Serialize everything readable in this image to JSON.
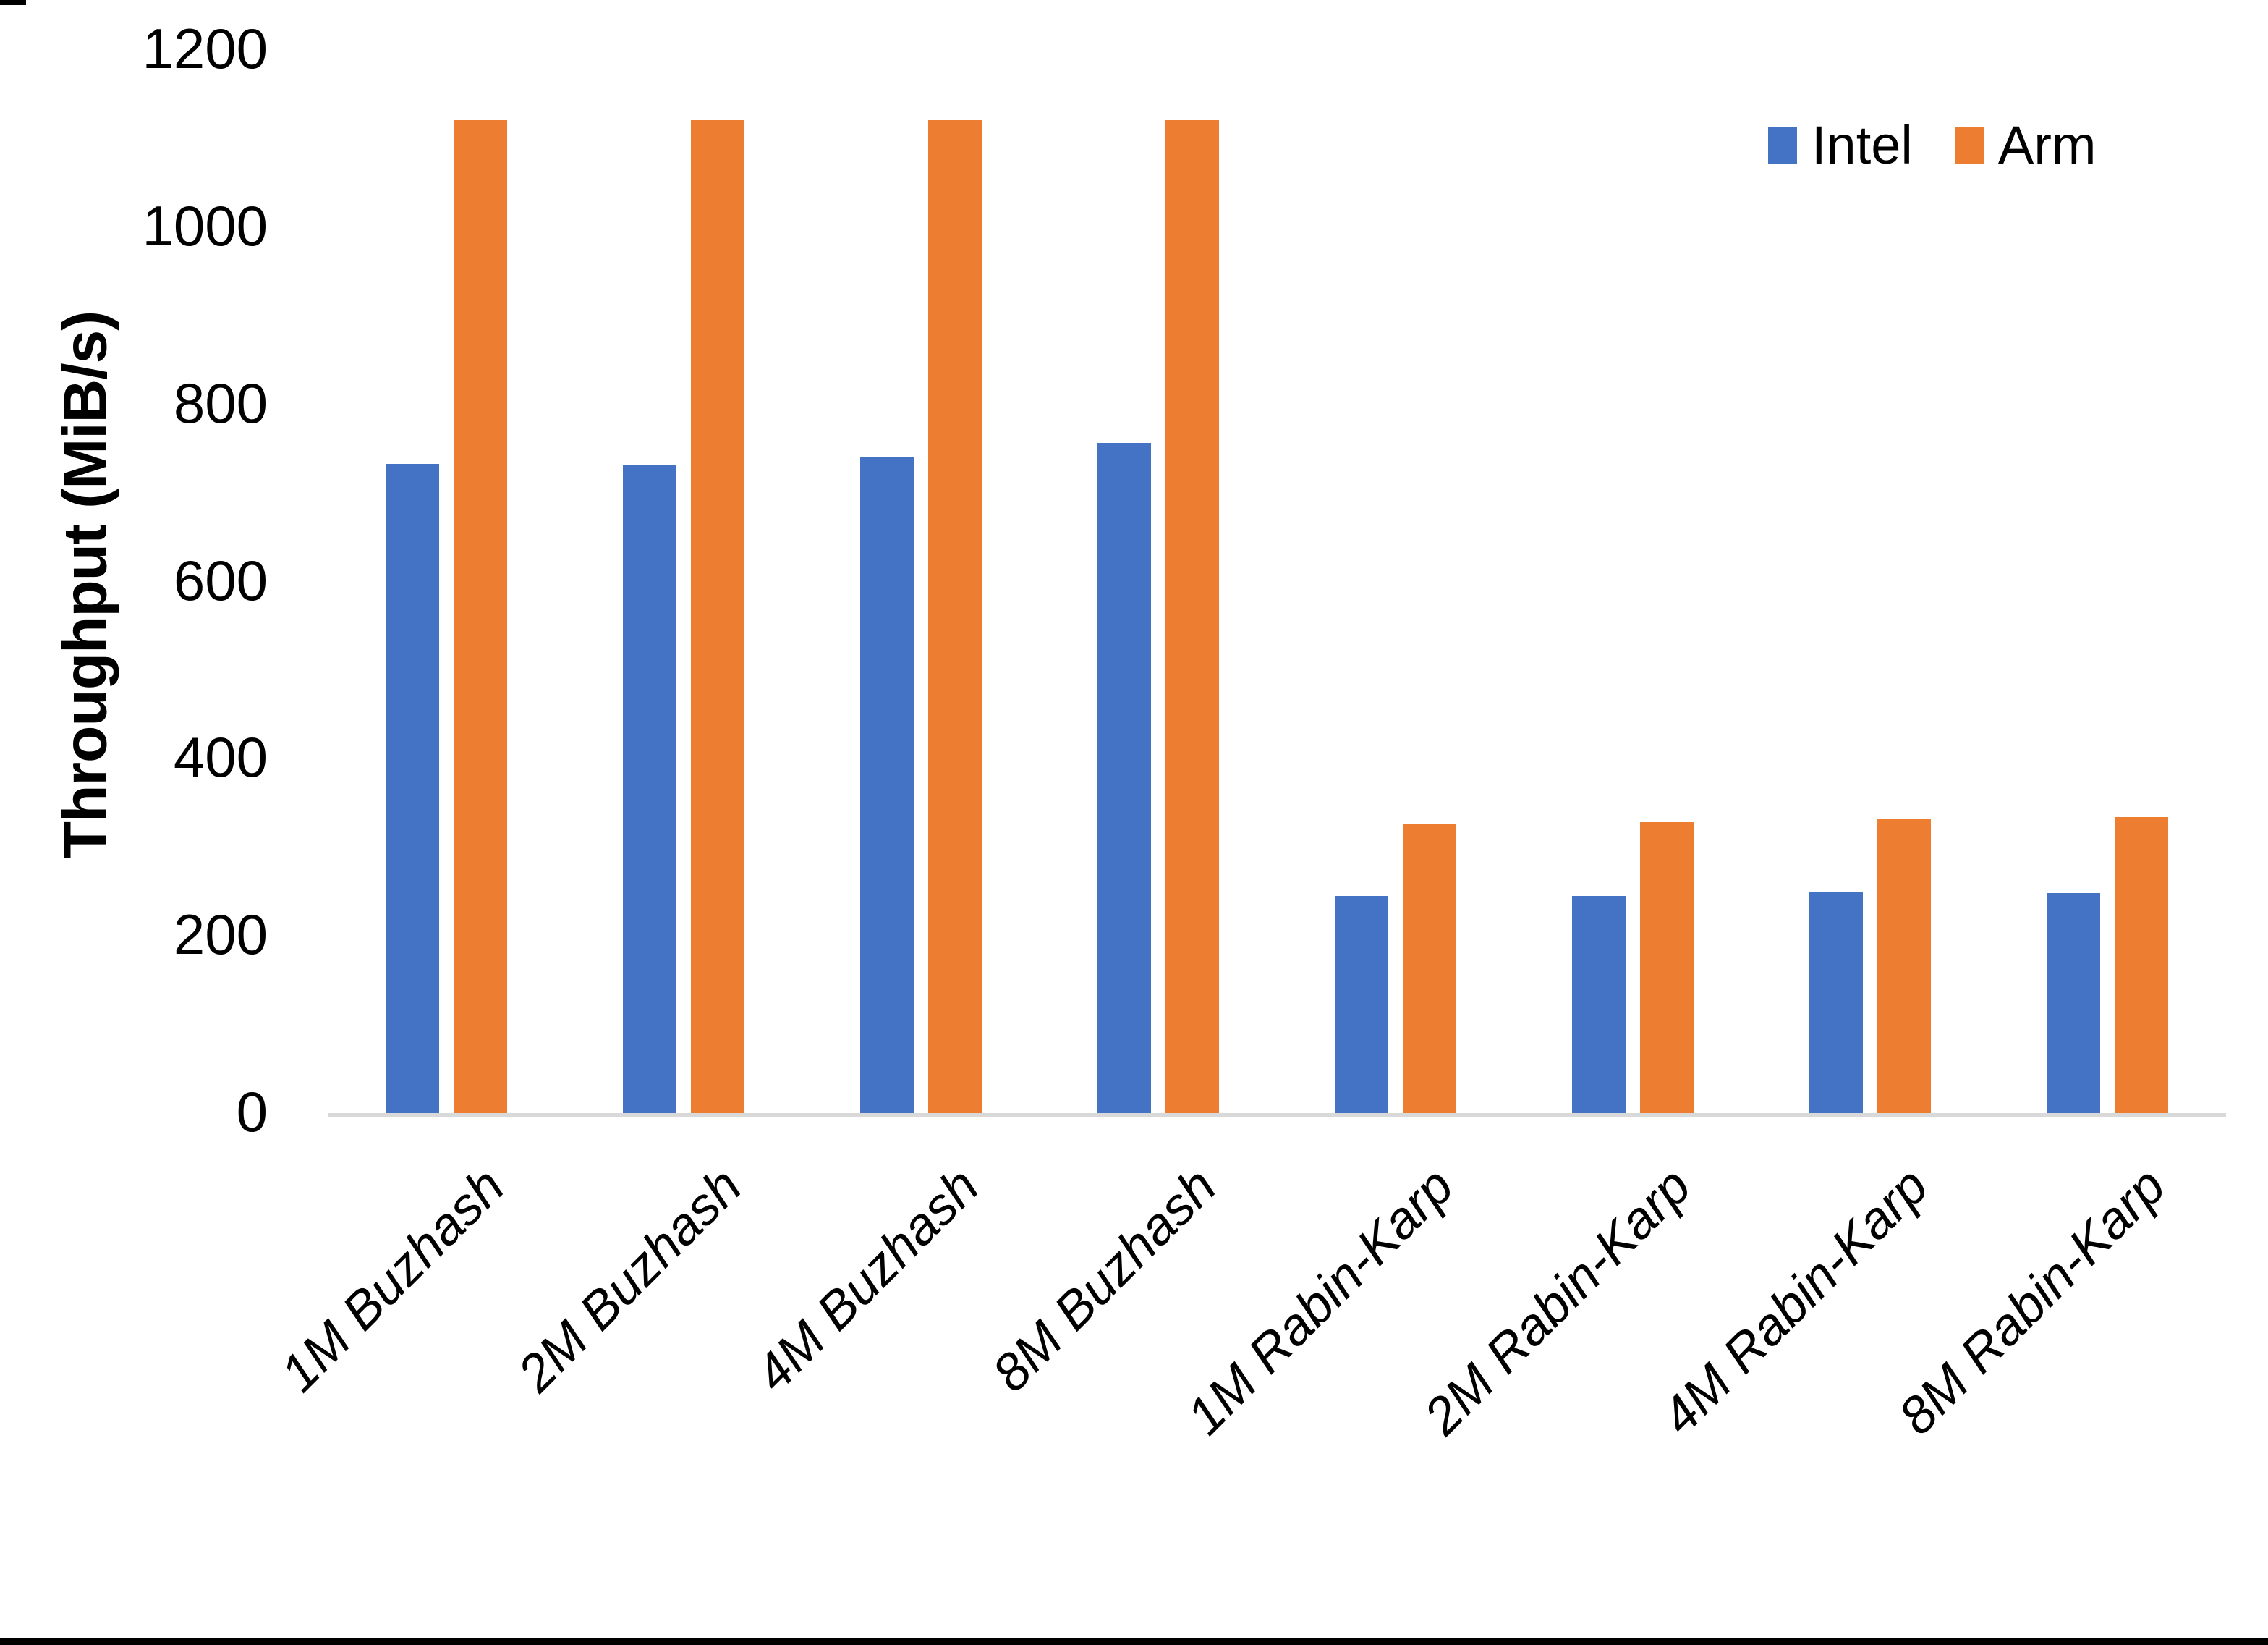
{
  "chart_data": {
    "type": "bar",
    "title": "",
    "xlabel": "",
    "ylabel": "Throughput (MiB/s)",
    "ylim": [
      0,
      1200
    ],
    "yticks": [
      0,
      200,
      400,
      600,
      800,
      1000,
      1200
    ],
    "grid": false,
    "legend_position": "top-right",
    "axis_line_color": "#d9d9d9",
    "text_color": "#000000",
    "background_color": "#ffffff",
    "categories": [
      "1M Buzhash",
      "2M Buzhash",
      "4M Buzhash",
      "8M Buzhash",
      "1M Rabin-Karp",
      "2M Rabin-Karp",
      "4M Rabin-Karp",
      "8M Rabin-Karp"
    ],
    "series": [
      {
        "name": "Intel",
        "color": "#4472C4",
        "values": [
          734,
          733,
          742,
          758,
          247,
          247,
          251,
          250
        ]
      },
      {
        "name": "Arm",
        "color": "#ED7D31",
        "values": [
          1122,
          1122,
          1122,
          1122,
          328,
          330,
          333,
          336
        ]
      }
    ]
  },
  "page": {
    "bottom_border_color": "#000000",
    "corner_mark_color": "#000000"
  }
}
